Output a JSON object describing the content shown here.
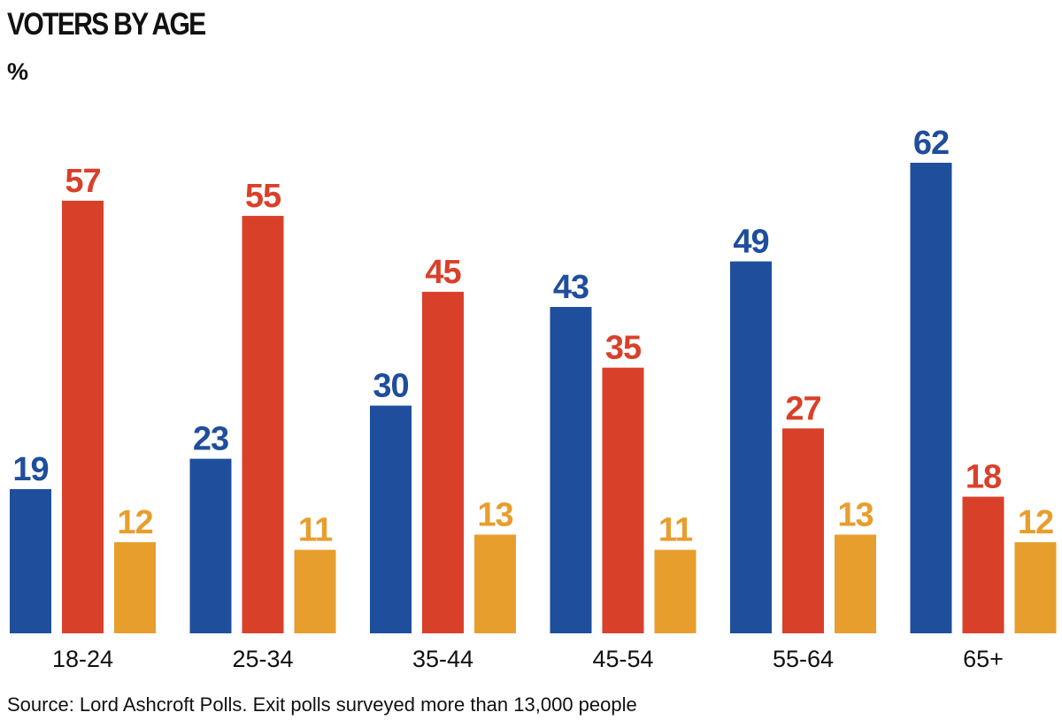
{
  "chart_data": {
    "type": "bar",
    "title": "VOTERS BY AGE",
    "unit": "%",
    "categories": [
      "18-24",
      "25-34",
      "35-44",
      "45-54",
      "55-64",
      "65+"
    ],
    "series": [
      {
        "color": "#1f4e9c",
        "values": [
          19,
          23,
          30,
          43,
          49,
          62
        ]
      },
      {
        "color": "#d9402a",
        "values": [
          57,
          55,
          45,
          35,
          27,
          18
        ]
      },
      {
        "color": "#e89e2c",
        "values": [
          12,
          11,
          13,
          11,
          13,
          12
        ]
      }
    ],
    "ylim": [
      0,
      70
    ],
    "grid": false,
    "legend": "none",
    "data_labels": true,
    "source": "Source: Lord Ashcroft Polls. Exit polls surveyed more than 13,000 people"
  }
}
